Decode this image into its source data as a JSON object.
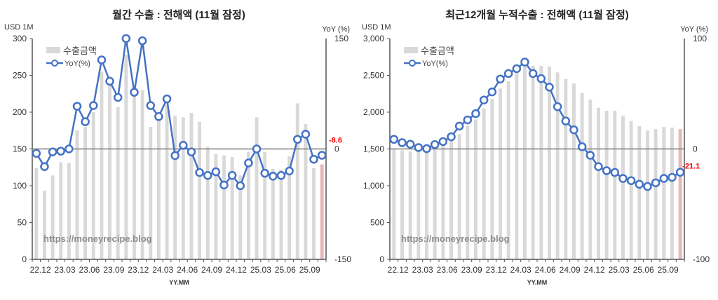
{
  "chart_data": [
    {
      "type": "bar+line",
      "title": "월간 수출 : 전해액 (11월 잠정)",
      "ylabel": "USD 1M",
      "y2label": "YoY (%)",
      "xlabel": "YY.MM",
      "ylim": [
        0,
        300
      ],
      "yticks": [
        "0",
        "50",
        "100",
        "150",
        "200",
        "250",
        "300"
      ],
      "y2lim": [
        -150,
        150
      ],
      "y2ticks": [
        "-150",
        "0",
        "150"
      ],
      "xticklabels": [
        "22.12",
        "23.03",
        "23.06",
        "23.09",
        "23.12",
        "24.03",
        "24.06",
        "24.09",
        "24.12",
        "25.03",
        "25.06",
        "25.09"
      ],
      "categories": [
        "22.12",
        "23.01",
        "23.02",
        "23.03",
        "23.04",
        "23.05",
        "23.06",
        "23.07",
        "23.08",
        "23.09",
        "23.10",
        "23.11",
        "23.12",
        "24.01",
        "24.02",
        "24.03",
        "24.04",
        "24.05",
        "24.06",
        "24.07",
        "24.08",
        "24.09",
        "24.10",
        "24.11",
        "24.12",
        "25.01",
        "25.02",
        "25.03",
        "25.04",
        "25.05",
        "25.06",
        "25.07",
        "25.08",
        "25.09",
        "25.10",
        "25.11"
      ],
      "series": [
        {
          "name": "수출금액",
          "type": "bar",
          "axis": "left",
          "color": "#d9d9d9",
          "last_color": "#e6b8b7",
          "values": [
            124,
            93,
            114,
            132,
            131,
            175,
            180,
            200,
            255,
            240,
            207,
            278,
            225,
            230,
            180,
            190,
            210,
            195,
            193,
            199,
            187,
            153,
            143,
            141,
            139,
            114,
            146,
            193,
            146,
            123,
            122,
            140,
            212,
            184,
            124,
            129
          ]
        },
        {
          "name": "YoY(%)",
          "type": "line",
          "axis": "right",
          "color": "#4472c4",
          "values": [
            -6,
            -24,
            -4,
            -3,
            0,
            58,
            37,
            59,
            121,
            92,
            70,
            152,
            77,
            147,
            59,
            44,
            68,
            -9,
            5,
            -4,
            -32,
            -36,
            -31,
            -49,
            -36,
            -50,
            -19,
            0,
            -33,
            -37,
            -36,
            -30,
            13,
            20,
            -14,
            -8.6
          ]
        }
      ],
      "last_label": "-8.6",
      "watermark": "https://moneyrecipe.blog",
      "legend_position": "top-left"
    },
    {
      "type": "bar+line",
      "title": "최근12개월 누적수출 : 전해액 (11월 잠정)",
      "ylabel": "USD 1M",
      "y2label": "YoY (%)",
      "xlabel": "YY.MM",
      "ylim": [
        0,
        3000
      ],
      "yticks": [
        "0",
        "500",
        "1,000",
        "1,500",
        "2,000",
        "2,500",
        "3,000"
      ],
      "y2lim": [
        -100,
        100
      ],
      "y2ticks": [
        "-100",
        "0",
        "100"
      ],
      "xticklabels": [
        "22.12",
        "23.03",
        "23.06",
        "23.09",
        "23.12",
        "24.03",
        "24.06",
        "24.09",
        "24.12",
        "25.03",
        "25.06",
        "25.09"
      ],
      "categories": [
        "22.12",
        "23.01",
        "23.02",
        "23.03",
        "23.04",
        "23.05",
        "23.06",
        "23.07",
        "23.08",
        "23.09",
        "23.10",
        "23.11",
        "23.12",
        "24.01",
        "24.02",
        "24.03",
        "24.04",
        "24.05",
        "24.06",
        "24.07",
        "24.08",
        "24.09",
        "24.10",
        "24.11",
        "24.12",
        "25.01",
        "25.02",
        "25.03",
        "25.04",
        "25.05",
        "25.06",
        "25.07",
        "25.08",
        "25.09",
        "25.10",
        "25.11"
      ],
      "series": [
        {
          "name": "수출금액",
          "type": "bar",
          "axis": "left",
          "color": "#d9d9d9",
          "last_color": "#e6b8b7",
          "values": [
            1500,
            1480,
            1470,
            1470,
            1480,
            1520,
            1560,
            1620,
            1700,
            1810,
            1900,
            2050,
            2180,
            2320,
            2420,
            2530,
            2620,
            2630,
            2630,
            2620,
            2540,
            2450,
            2390,
            2260,
            2170,
            2060,
            2020,
            2020,
            1950,
            1880,
            1810,
            1750,
            1770,
            1800,
            1790,
            1770
          ]
        },
        {
          "name": "YoY(%)",
          "type": "line",
          "axis": "right",
          "color": "#4472c4",
          "values": [
            8.7,
            5.7,
            4.3,
            1.3,
            0.3,
            4,
            6.7,
            11,
            20.7,
            26.3,
            32,
            44.3,
            51.7,
            63.3,
            68.3,
            72.7,
            78.7,
            68.3,
            63.7,
            56,
            38.3,
            25.3,
            17.3,
            2,
            -5.7,
            -16,
            -19.7,
            -21.3,
            -26.7,
            -28.7,
            -32,
            -34,
            -30.7,
            -26.7,
            -25.7,
            -21.1
          ]
        }
      ],
      "last_label": "-21.1",
      "watermark": "https://moneyrecipe.blog",
      "legend_position": "top-left"
    }
  ]
}
